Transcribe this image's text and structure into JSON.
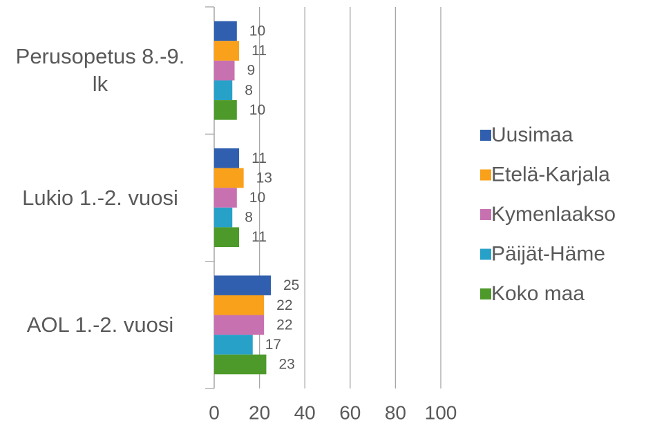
{
  "chart_data": {
    "type": "bar",
    "orientation": "horizontal",
    "categories": [
      "Perusopetus 8.-9. lk",
      "Lukio 1.-2. vuosi",
      "AOL 1.-2. vuosi"
    ],
    "series": [
      {
        "name": "Uusimaa",
        "color": "#2f5fae",
        "values": [
          10,
          11,
          25
        ]
      },
      {
        "name": "Etelä-Karjala",
        "color": "#f9a11b",
        "values": [
          11,
          13,
          22
        ]
      },
      {
        "name": "Kymenlaakso",
        "color": "#c871b1",
        "values": [
          9,
          10,
          22
        ]
      },
      {
        "name": "Päijät-Häme",
        "color": "#28a1c9",
        "values": [
          8,
          8,
          17
        ]
      },
      {
        "name": "Koko maa",
        "color": "#4d9a2b",
        "values": [
          10,
          11,
          23
        ]
      }
    ],
    "xlim": [
      0,
      100
    ],
    "xticks": [
      0,
      20,
      40,
      60,
      80,
      100
    ],
    "grid": true,
    "legend": "right"
  }
}
